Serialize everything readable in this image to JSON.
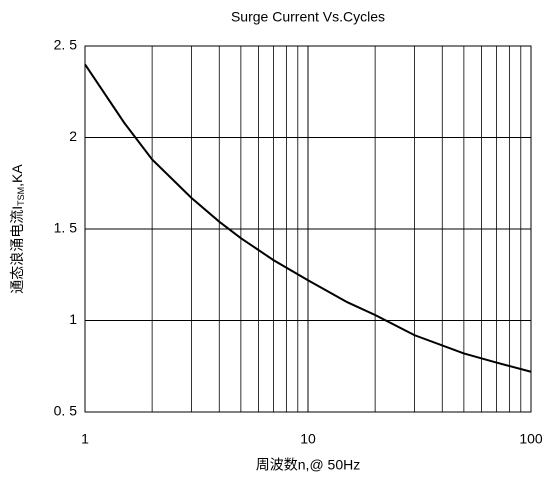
{
  "chart_data": {
    "type": "line",
    "title": "Surge Current Vs.Cycles",
    "xlabel": "周波数n,@ 50Hz",
    "ylabel": [
      "通态浪涌电流I",
      "TSM",
      ",KA"
    ],
    "xscale": "log",
    "xlim": [
      1,
      100
    ],
    "xticks": [
      1,
      10,
      100
    ],
    "xminor_ticks": [
      2,
      3,
      4,
      5,
      6,
      7,
      8,
      9,
      20,
      30,
      40,
      50,
      60,
      70,
      80,
      90
    ],
    "ylim": [
      0.5,
      2.5
    ],
    "yticks": [
      {
        "value": 0.5,
        "label": "0. 5"
      },
      1,
      {
        "value": 1.5,
        "label": "1. 5"
      },
      2,
      {
        "value": 2.5,
        "label": "2. 5"
      }
    ],
    "grid": true,
    "series": [
      {
        "name": "ITSM",
        "color": "#000000",
        "x": [
          1,
          1.5,
          2,
          3,
          4,
          5,
          7,
          10,
          15,
          20,
          30,
          50,
          70,
          100
        ],
        "values": [
          2.4,
          2.08,
          1.88,
          1.67,
          1.54,
          1.45,
          1.33,
          1.22,
          1.1,
          1.03,
          0.92,
          0.82,
          0.77,
          0.72
        ]
      }
    ]
  }
}
